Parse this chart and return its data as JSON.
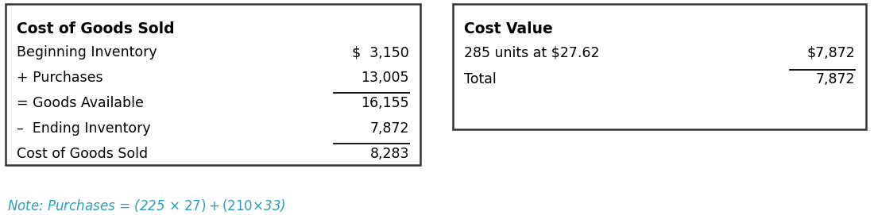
{
  "left_box": {
    "title": "Cost of Goods Sold",
    "rows": [
      {
        "label": "Beginning Inventory",
        "value": "$  3,150",
        "underline_below": false,
        "overline": false
      },
      {
        "label": "+ Purchases",
        "value": "13,005",
        "underline_below": true,
        "overline": false
      },
      {
        "label": "= Goods Available",
        "value": "16,155",
        "underline_below": false,
        "overline": false
      },
      {
        "label": "–  Ending Inventory",
        "value": "7,872",
        "underline_below": true,
        "overline": false
      },
      {
        "label": "Cost of Goods Sold",
        "value": "8,283",
        "underline_below": false,
        "overline": false
      }
    ]
  },
  "right_box": {
    "title": "Cost Value",
    "rows": [
      {
        "label": "285 units at $27.62",
        "value": "$7,872",
        "underline_below": false,
        "overline": false
      },
      {
        "label": "Total",
        "value": "7,872",
        "underline_below": false,
        "overline": true
      }
    ]
  },
  "note_text": "Note: Purchases = (225 × $27) + (210 × $33)",
  "note_color": "#29a0b8",
  "bg_color": "#ffffff",
  "text_color": "#000000",
  "box_edge_color": "#333333",
  "title_fontsize": 13.5,
  "body_fontsize": 12.5,
  "note_fontsize": 12
}
